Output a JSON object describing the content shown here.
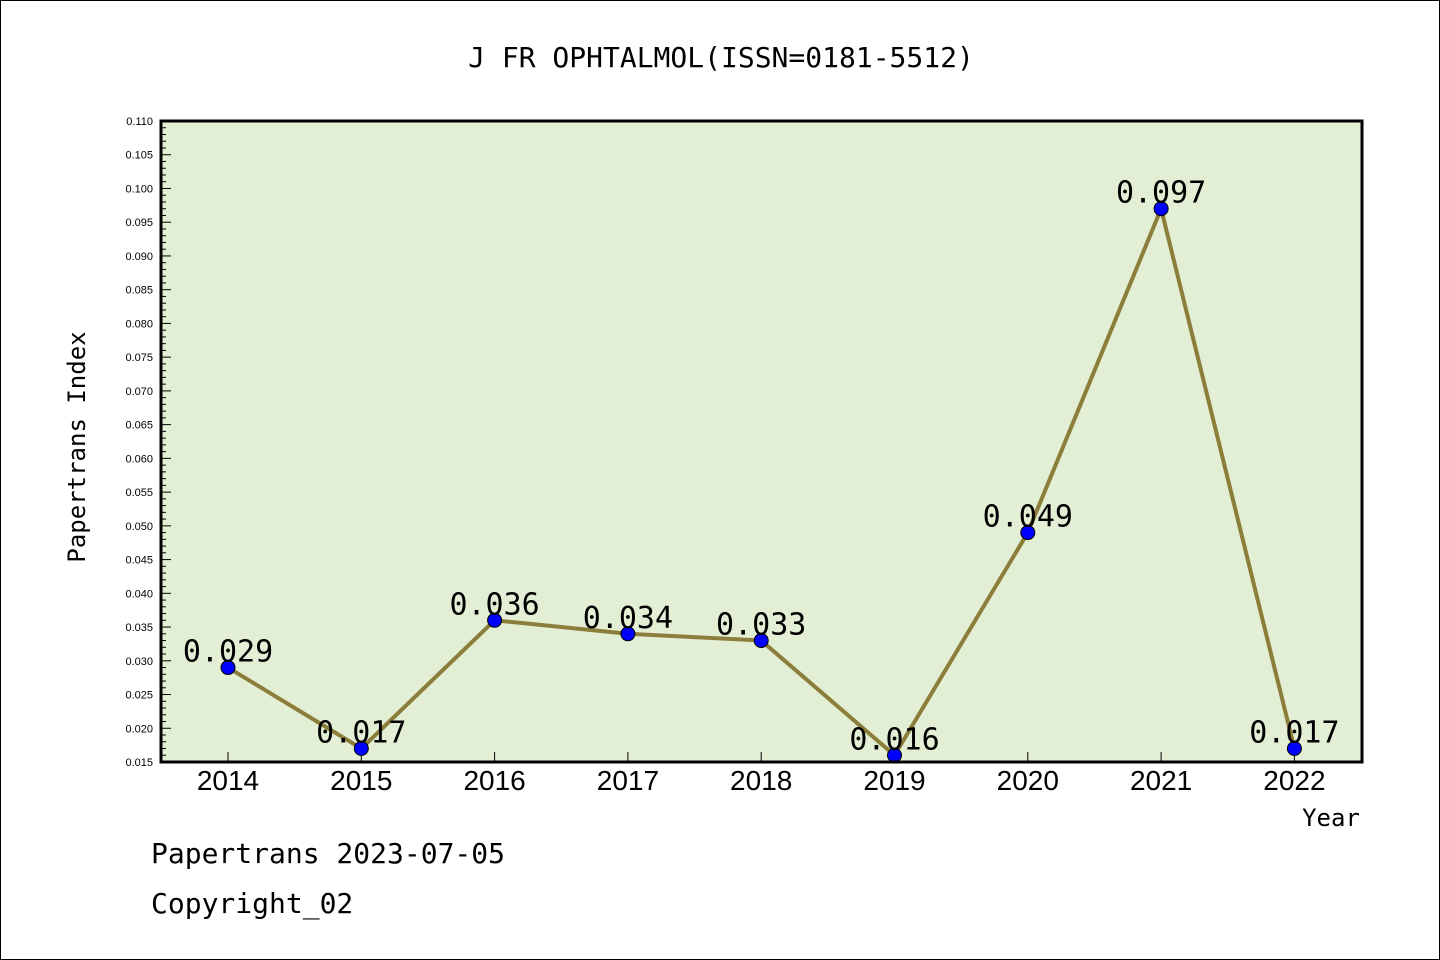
{
  "chart_data": {
    "type": "line",
    "title": "J FR OPHTALMOL(ISSN=0181-5512)",
    "xlabel": "Year",
    "ylabel": "Papertrans Index",
    "categories": [
      "2014",
      "2015",
      "2016",
      "2017",
      "2018",
      "2019",
      "2020",
      "2021",
      "2022"
    ],
    "series": [
      {
        "values": [
          0.029,
          0.017,
          0.036,
          0.034,
          0.033,
          0.016,
          0.049,
          0.097,
          0.017
        ]
      }
    ],
    "data_labels": [
      "0.029",
      "0.017",
      "0.036",
      "0.034",
      "0.033",
      "0.016",
      "0.049",
      "0.097",
      "0.017"
    ],
    "ylim": [
      0.015,
      0.11
    ],
    "yticks": [
      "0.015",
      "0.020",
      "0.025",
      "0.030",
      "0.035",
      "0.040",
      "0.045",
      "0.050",
      "0.055",
      "0.060",
      "0.065",
      "0.070",
      "0.075",
      "0.080",
      "0.085",
      "0.090",
      "0.095",
      "0.100",
      "0.105",
      "0.110"
    ],
    "grid": false,
    "colors": {
      "plot_background": "#e2efd5",
      "line": "#8b7d3a",
      "marker": "#0000ff"
    }
  },
  "footer": {
    "date_line": "Papertrans 2023-07-05",
    "copyright": "Copyright_02"
  }
}
